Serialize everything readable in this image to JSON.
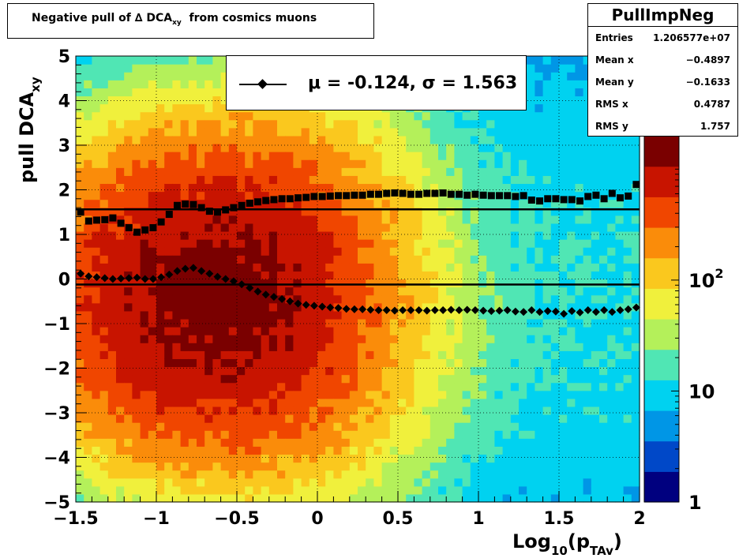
{
  "title": {
    "prefix": "Negative pull of ∆ DCA",
    "subscript": "xy",
    "suffix": "from cosmics muons"
  },
  "stats": {
    "name": "PullImpNeg",
    "rows": [
      {
        "label": "Entries",
        "value": "1.206577e+07"
      },
      {
        "label": "Mean x",
        "value": "−0.4897"
      },
      {
        "label": "Mean y",
        "value": "−0.1633"
      },
      {
        "label": "RMS x",
        "value": "0.4787"
      },
      {
        "label": "RMS y",
        "value": "1.757"
      }
    ]
  },
  "legend": {
    "text": "μ = -0.124, σ =   1.563"
  },
  "colors": {
    "mean_marker": "#000000",
    "sigma_marker": "#000000",
    "fit_line": "#000000",
    "palette": [
      "#00007f",
      "#0048c8",
      "#0096e6",
      "#00d2f0",
      "#50e6b4",
      "#b4f05a",
      "#f0f03c",
      "#fac81e",
      "#fa8c0a",
      "#f04600",
      "#c81400",
      "#7a0000"
    ]
  },
  "chart_data": {
    "type": "heatmap",
    "xlabel": {
      "main": "Log",
      "sub": "10",
      "mid": "(p",
      "sub2": "TAv",
      "end": ")"
    },
    "ylabel": {
      "main": "pull DCA",
      "sub": "xy"
    },
    "xlim": [
      -1.5,
      2
    ],
    "ylim": [
      -5,
      5
    ],
    "xticks": [
      "−1.5",
      "−1",
      "−0.5",
      "0",
      "0.5",
      "1",
      "1.5",
      "2"
    ],
    "yticks": [
      "−5",
      "−4",
      "−3",
      "−2",
      "−1",
      "0",
      "1",
      "2",
      "3",
      "4",
      "5"
    ],
    "colorbar": {
      "scale": "log",
      "range": [
        1,
        2000
      ],
      "ticks": [
        "1",
        "10",
        "10^2"
      ]
    },
    "grid": true,
    "distribution": {
      "peak_x": -0.65,
      "peak_y": -0.4,
      "width_x": 0.55,
      "width_y": 1.8,
      "peak_count": 1500
    },
    "fit_lines": [
      {
        "name": "mean",
        "y": -0.124
      },
      {
        "name": "sigma",
        "y": 1.563
      }
    ],
    "series": [
      {
        "name": "mean profile",
        "marker": "diamond",
        "x": [
          -1.47,
          -1.42,
          -1.37,
          -1.32,
          -1.27,
          -1.22,
          -1.17,
          -1.12,
          -1.07,
          -1.02,
          -0.97,
          -0.92,
          -0.87,
          -0.82,
          -0.77,
          -0.72,
          -0.67,
          -0.62,
          -0.57,
          -0.52,
          -0.47,
          -0.42,
          -0.37,
          -0.32,
          -0.27,
          -0.22,
          -0.17,
          -0.12,
          -0.07,
          -0.02,
          0.03,
          0.08,
          0.13,
          0.18,
          0.23,
          0.28,
          0.33,
          0.38,
          0.43,
          0.48,
          0.53,
          0.58,
          0.63,
          0.68,
          0.73,
          0.78,
          0.83,
          0.88,
          0.93,
          0.98,
          1.03,
          1.08,
          1.13,
          1.18,
          1.23,
          1.28,
          1.33,
          1.38,
          1.43,
          1.48,
          1.53,
          1.58,
          1.63,
          1.68,
          1.73,
          1.78,
          1.83,
          1.88,
          1.93,
          1.98
        ],
        "y": [
          0.12,
          0.06,
          0.04,
          0.02,
          0.0,
          0.01,
          0.02,
          0.03,
          0.0,
          0.0,
          0.04,
          0.1,
          0.18,
          0.23,
          0.25,
          0.18,
          0.12,
          0.05,
          0.0,
          -0.05,
          -0.12,
          -0.2,
          -0.28,
          -0.35,
          -0.4,
          -0.45,
          -0.5,
          -0.55,
          -0.58,
          -0.6,
          -0.62,
          -0.64,
          -0.65,
          -0.67,
          -0.68,
          -0.68,
          -0.69,
          -0.7,
          -0.7,
          -0.71,
          -0.7,
          -0.7,
          -0.7,
          -0.71,
          -0.7,
          -0.7,
          -0.69,
          -0.7,
          -0.69,
          -0.7,
          -0.71,
          -0.72,
          -0.71,
          -0.7,
          -0.73,
          -0.74,
          -0.7,
          -0.74,
          -0.72,
          -0.73,
          -0.78,
          -0.72,
          -0.75,
          -0.7,
          -0.74,
          -0.7,
          -0.74,
          -0.7,
          -0.68,
          -0.64
        ]
      },
      {
        "name": "sigma profile",
        "marker": "square",
        "x": [
          -1.47,
          -1.42,
          -1.37,
          -1.32,
          -1.27,
          -1.22,
          -1.17,
          -1.12,
          -1.07,
          -1.02,
          -0.97,
          -0.92,
          -0.87,
          -0.82,
          -0.77,
          -0.72,
          -0.67,
          -0.62,
          -0.57,
          -0.52,
          -0.47,
          -0.42,
          -0.37,
          -0.32,
          -0.27,
          -0.22,
          -0.17,
          -0.12,
          -0.07,
          -0.02,
          0.03,
          0.08,
          0.13,
          0.18,
          0.23,
          0.28,
          0.33,
          0.38,
          0.43,
          0.48,
          0.53,
          0.58,
          0.63,
          0.68,
          0.73,
          0.78,
          0.83,
          0.88,
          0.93,
          0.98,
          1.03,
          1.08,
          1.13,
          1.18,
          1.23,
          1.28,
          1.33,
          1.38,
          1.43,
          1.48,
          1.53,
          1.58,
          1.63,
          1.68,
          1.73,
          1.78,
          1.83,
          1.88,
          1.93,
          1.98
        ],
        "y": [
          1.5,
          1.3,
          1.32,
          1.33,
          1.37,
          1.25,
          1.15,
          1.05,
          1.1,
          1.15,
          1.28,
          1.45,
          1.65,
          1.68,
          1.67,
          1.6,
          1.52,
          1.5,
          1.55,
          1.6,
          1.65,
          1.7,
          1.73,
          1.76,
          1.78,
          1.8,
          1.8,
          1.82,
          1.83,
          1.85,
          1.85,
          1.86,
          1.87,
          1.87,
          1.88,
          1.88,
          1.9,
          1.9,
          1.92,
          1.93,
          1.92,
          1.9,
          1.9,
          1.92,
          1.92,
          1.93,
          1.9,
          1.9,
          1.88,
          1.9,
          1.88,
          1.87,
          1.87,
          1.87,
          1.85,
          1.87,
          1.77,
          1.75,
          1.8,
          1.8,
          1.78,
          1.78,
          1.75,
          1.85,
          1.88,
          1.8,
          1.92,
          1.82,
          1.86,
          2.12
        ]
      }
    ]
  }
}
